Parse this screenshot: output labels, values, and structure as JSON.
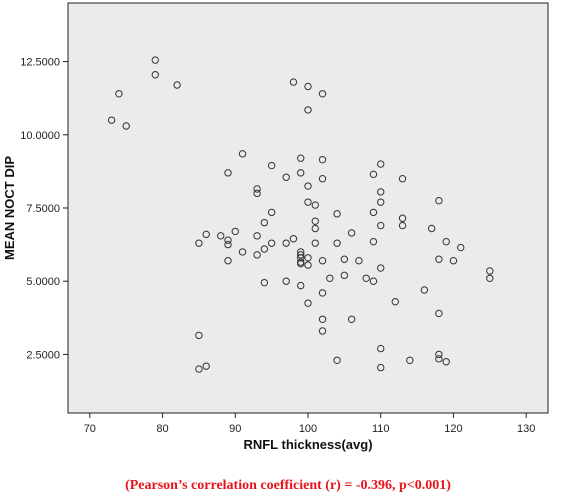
{
  "chart_data": {
    "type": "scatter",
    "xlabel": "RNFL thickness(avg)",
    "ylabel": "MEAN NOCT DIP",
    "xlim": [
      67,
      133
    ],
    "ylim": [
      0.5,
      14.5
    ],
    "x_ticks": [
      70,
      80,
      90,
      100,
      110,
      120,
      130
    ],
    "y_ticks": [
      2.5,
      5.0,
      7.5,
      10.0,
      12.5
    ],
    "x_tick_labels": [
      "70",
      "80",
      "90",
      "100",
      "110",
      "120",
      "130"
    ],
    "y_tick_labels": [
      "2.5000",
      "5.0000",
      "7.5000",
      "10.0000",
      "12.5000"
    ],
    "grid": false,
    "marker": "hollow-circle",
    "plot_background": "#ebebeb",
    "marker_color": "#333333",
    "points": [
      {
        "x": 73,
        "y": 10.5
      },
      {
        "x": 74,
        "y": 11.4
      },
      {
        "x": 75,
        "y": 10.3
      },
      {
        "x": 79,
        "y": 12.55
      },
      {
        "x": 79,
        "y": 12.05
      },
      {
        "x": 82,
        "y": 11.7
      },
      {
        "x": 85,
        "y": 6.3
      },
      {
        "x": 85,
        "y": 3.15
      },
      {
        "x": 85,
        "y": 2.0
      },
      {
        "x": 86,
        "y": 6.6
      },
      {
        "x": 86,
        "y": 2.1
      },
      {
        "x": 88,
        "y": 6.55
      },
      {
        "x": 89,
        "y": 8.7
      },
      {
        "x": 89,
        "y": 6.4
      },
      {
        "x": 89,
        "y": 6.25
      },
      {
        "x": 89,
        "y": 5.7
      },
      {
        "x": 90,
        "y": 6.7
      },
      {
        "x": 91,
        "y": 9.35
      },
      {
        "x": 91,
        "y": 6.0
      },
      {
        "x": 93,
        "y": 8.15
      },
      {
        "x": 93,
        "y": 8.0
      },
      {
        "x": 93,
        "y": 6.55
      },
      {
        "x": 93,
        "y": 5.9
      },
      {
        "x": 94,
        "y": 7.0
      },
      {
        "x": 94,
        "y": 6.1
      },
      {
        "x": 94,
        "y": 4.95
      },
      {
        "x": 95,
        "y": 8.95
      },
      {
        "x": 95,
        "y": 7.35
      },
      {
        "x": 95,
        "y": 6.3
      },
      {
        "x": 97,
        "y": 8.55
      },
      {
        "x": 97,
        "y": 6.3
      },
      {
        "x": 97,
        "y": 5.0
      },
      {
        "x": 98,
        "y": 11.8
      },
      {
        "x": 98,
        "y": 6.45
      },
      {
        "x": 99,
        "y": 9.2
      },
      {
        "x": 99,
        "y": 8.7
      },
      {
        "x": 99,
        "y": 6.0
      },
      {
        "x": 99,
        "y": 5.9
      },
      {
        "x": 99,
        "y": 5.8
      },
      {
        "x": 99,
        "y": 5.65
      },
      {
        "x": 99,
        "y": 5.6
      },
      {
        "x": 99,
        "y": 4.85
      },
      {
        "x": 100,
        "y": 11.65
      },
      {
        "x": 100,
        "y": 10.85
      },
      {
        "x": 100,
        "y": 8.25
      },
      {
        "x": 100,
        "y": 7.7
      },
      {
        "x": 100,
        "y": 5.8
      },
      {
        "x": 100,
        "y": 5.55
      },
      {
        "x": 100,
        "y": 4.25
      },
      {
        "x": 101,
        "y": 7.6
      },
      {
        "x": 101,
        "y": 7.05
      },
      {
        "x": 101,
        "y": 6.8
      },
      {
        "x": 101,
        "y": 6.3
      },
      {
        "x": 102,
        "y": 11.4
      },
      {
        "x": 102,
        "y": 9.15
      },
      {
        "x": 102,
        "y": 8.5
      },
      {
        "x": 102,
        "y": 5.7
      },
      {
        "x": 102,
        "y": 4.6
      },
      {
        "x": 102,
        "y": 3.7
      },
      {
        "x": 102,
        "y": 3.3
      },
      {
        "x": 103,
        "y": 5.1
      },
      {
        "x": 104,
        "y": 7.3
      },
      {
        "x": 104,
        "y": 6.3
      },
      {
        "x": 104,
        "y": 2.3
      },
      {
        "x": 105,
        "y": 5.75
      },
      {
        "x": 105,
        "y": 5.2
      },
      {
        "x": 106,
        "y": 6.65
      },
      {
        "x": 106,
        "y": 3.7
      },
      {
        "x": 107,
        "y": 5.7
      },
      {
        "x": 108,
        "y": 5.1
      },
      {
        "x": 109,
        "y": 8.65
      },
      {
        "x": 109,
        "y": 7.35
      },
      {
        "x": 109,
        "y": 6.35
      },
      {
        "x": 109,
        "y": 5.0
      },
      {
        "x": 110,
        "y": 9.0
      },
      {
        "x": 110,
        "y": 8.05
      },
      {
        "x": 110,
        "y": 7.7
      },
      {
        "x": 110,
        "y": 6.9
      },
      {
        "x": 110,
        "y": 5.45
      },
      {
        "x": 110,
        "y": 2.7
      },
      {
        "x": 110,
        "y": 2.05
      },
      {
        "x": 112,
        "y": 4.3
      },
      {
        "x": 113,
        "y": 8.5
      },
      {
        "x": 113,
        "y": 7.15
      },
      {
        "x": 113,
        "y": 6.9
      },
      {
        "x": 114,
        "y": 2.3
      },
      {
        "x": 116,
        "y": 4.7
      },
      {
        "x": 117,
        "y": 6.8
      },
      {
        "x": 118,
        "y": 7.75
      },
      {
        "x": 118,
        "y": 5.75
      },
      {
        "x": 118,
        "y": 3.9
      },
      {
        "x": 118,
        "y": 2.5
      },
      {
        "x": 118,
        "y": 2.35
      },
      {
        "x": 119,
        "y": 6.35
      },
      {
        "x": 119,
        "y": 2.25
      },
      {
        "x": 120,
        "y": 5.7
      },
      {
        "x": 121,
        "y": 6.15
      },
      {
        "x": 125,
        "y": 5.35
      },
      {
        "x": 125,
        "y": 5.1
      }
    ],
    "annotation": "(Pearson’s correlation coefficient (r) = -0.396, p<0.001)",
    "annotation_color": "#e8141b"
  }
}
